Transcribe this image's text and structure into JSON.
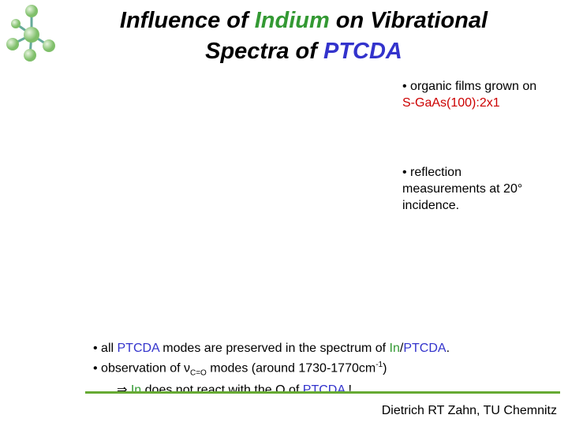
{
  "header": {
    "title_line1": [
      "Influence of ",
      "Indium",
      " on Vibrational"
    ],
    "title_line2": [
      "Spectra of ",
      "PTCDA"
    ]
  },
  "side_notes": [
    {
      "line1": "• organic films grown on",
      "line2": "S-GaAs(100):2x1"
    },
    {
      "lines": [
        "• reflection",
        "measurements at 20°",
        "incidence."
      ]
    }
  ],
  "bullets": {
    "line1": [
      "• all ",
      "PTCDA",
      " modes are preserved in the spectrum of ",
      "In",
      "/",
      "PTCDA",
      "."
    ],
    "line2": [
      "• observation of ",
      "ν",
      "C=O",
      " modes (around 1730-1770cm",
      "-1",
      ")"
    ],
    "line3": [
      "⇒ ",
      "In",
      " does not react with the O of ",
      "PTCDA",
      " !"
    ]
  },
  "footer": "Dietrich RT Zahn, TU Chemnitz"
}
